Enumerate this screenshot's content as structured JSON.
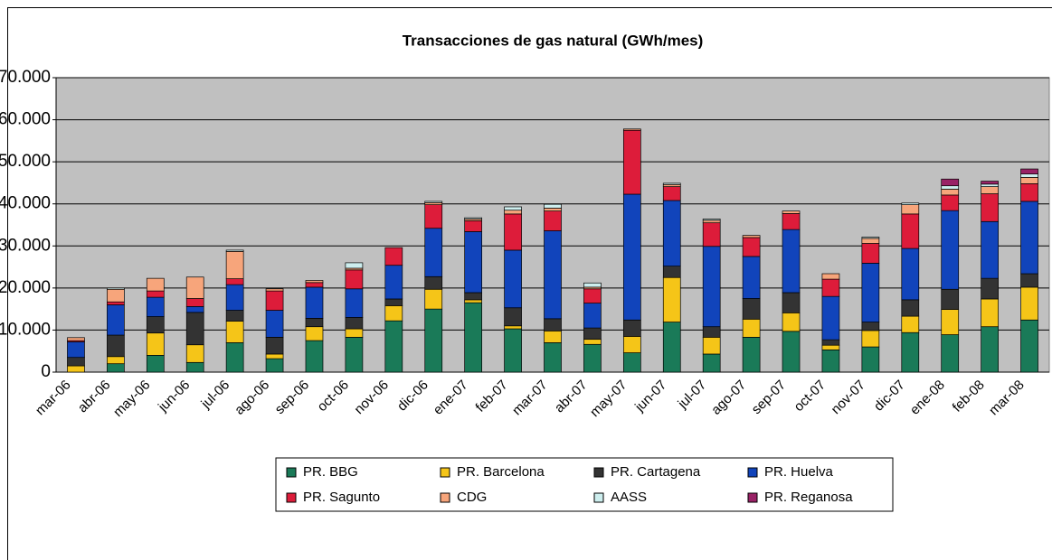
{
  "chart_data": {
    "type": "stacked_bar",
    "title": "Transacciones de gas natural (GWh/mes)",
    "categories": [
      "mar-06",
      "abr-06",
      "may-06",
      "jun-06",
      "jul-06",
      "ago-06",
      "sep-06",
      "oct-06",
      "nov-06",
      "dic-06",
      "ene-07",
      "feb-07",
      "mar-07",
      "abr-07",
      "may-07",
      "jun-07",
      "jul-07",
      "ago-07",
      "sep-07",
      "oct-07",
      "nov-07",
      "dic-07",
      "ene-08",
      "feb-08",
      "mar-08"
    ],
    "series": [
      {
        "name": "PR. BBG",
        "color": "#1a7a58",
        "values": [
          0,
          2000,
          4000,
          2300,
          7000,
          3200,
          7500,
          8300,
          12200,
          15000,
          16500,
          10300,
          7000,
          6600,
          4600,
          11900,
          4300,
          8300,
          9700,
          5300,
          6000,
          9400,
          8900,
          10800,
          12400
        ]
      },
      {
        "name": "PR. Barcelona",
        "color": "#f5c518",
        "values": [
          1500,
          1700,
          5300,
          4200,
          5100,
          1100,
          3300,
          2000,
          3600,
          4700,
          700,
          700,
          2800,
          1200,
          3900,
          10600,
          4000,
          4300,
          4400,
          1100,
          3900,
          3900,
          6000,
          6600,
          7800
        ]
      },
      {
        "name": "PR. Cartagena",
        "color": "#333333",
        "values": [
          2000,
          5100,
          3900,
          7700,
          2600,
          4000,
          2000,
          2700,
          1600,
          3000,
          1700,
          4300,
          2900,
          2700,
          3900,
          2700,
          2500,
          4900,
          4800,
          1300,
          2000,
          3900,
          4800,
          4900,
          3200
        ]
      },
      {
        "name": "PR. Huelva",
        "color": "#1144bb",
        "values": [
          3700,
          7200,
          4600,
          1400,
          6100,
          6400,
          7400,
          6800,
          8000,
          11500,
          14500,
          13700,
          20900,
          5900,
          29900,
          15600,
          19100,
          10000,
          15000,
          10300,
          14000,
          12200,
          18700,
          13500,
          17200
        ]
      },
      {
        "name": "PR. Sagunto",
        "color": "#dd1c3a",
        "values": [
          300,
          700,
          1500,
          1900,
          1400,
          4600,
          1100,
          4500,
          4200,
          5600,
          2600,
          8600,
          4700,
          3400,
          15200,
          3300,
          5600,
          4500,
          3800,
          4100,
          4700,
          8200,
          3700,
          6600,
          4200
        ]
      },
      {
        "name": "CDG",
        "color": "#f7a57b",
        "values": [
          700,
          3000,
          3000,
          5100,
          6500,
          500,
          500,
          400,
          0,
          500,
          400,
          900,
          700,
          400,
          300,
          500,
          600,
          500,
          600,
          1300,
          1200,
          2200,
          1400,
          1700,
          1500
        ]
      },
      {
        "name": "AASS",
        "color": "#cdeeee",
        "values": [
          0,
          300,
          0,
          0,
          300,
          0,
          0,
          1300,
          0,
          300,
          300,
          800,
          900,
          1000,
          0,
          300,
          300,
          0,
          0,
          0,
          300,
          400,
          800,
          600,
          800
        ]
      },
      {
        "name": "PR. Reganosa",
        "color": "#992266",
        "values": [
          0,
          0,
          0,
          0,
          0,
          0,
          0,
          0,
          0,
          0,
          0,
          0,
          0,
          0,
          0,
          0,
          0,
          0,
          0,
          0,
          0,
          0,
          1600,
          700,
          1200
        ]
      }
    ],
    "ylim": [
      0,
      70000
    ],
    "yticks": [
      0,
      {
        "value": 10000,
        "label": "10.000"
      },
      {
        "value": 20000,
        "label": "20.000"
      },
      {
        "value": 30000,
        "label": "30.000"
      },
      {
        "value": 40000,
        "label": "40.000"
      },
      {
        "value": 50000,
        "label": "50.000"
      },
      {
        "value": 60000,
        "label": "60.000"
      },
      {
        "value": 70000,
        "label": "70.000"
      }
    ],
    "grid": true,
    "legend": "bottom"
  }
}
